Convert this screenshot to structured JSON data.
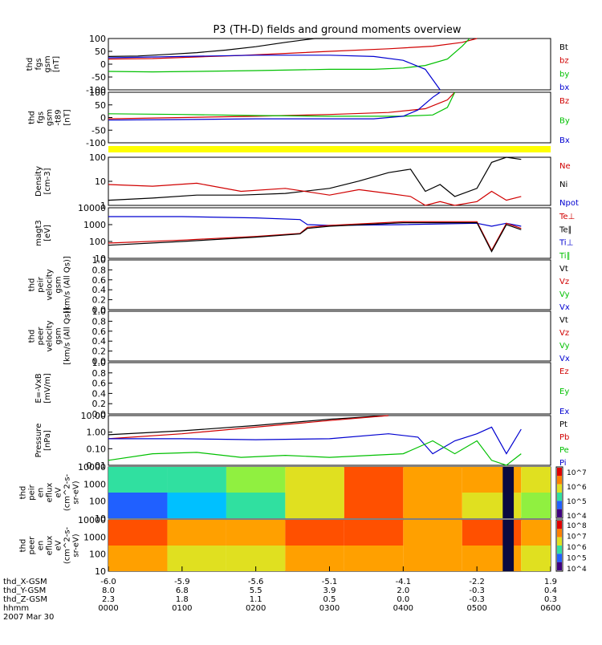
{
  "title": "P3 (TH-D) fields and ground moments overview",
  "colors": {
    "black": "#000000",
    "red": "#d00000",
    "green": "#00c000",
    "blue": "#0000d0",
    "yellow": "#ffff00"
  },
  "chart_data": [
    {
      "type": "line",
      "id": "fgs",
      "ylabel": [
        "thd",
        "fgs",
        "gsm",
        "[nT]"
      ],
      "ylim": [
        -100,
        100
      ],
      "yticks": [
        "100",
        "50",
        "0",
        "-50",
        "-100"
      ],
      "legend": [
        {
          "text": "Bt",
          "color": "black"
        },
        {
          "text": "bz",
          "color": "red"
        },
        {
          "text": "by",
          "color": "green"
        },
        {
          "text": "bx",
          "color": "blue"
        }
      ],
      "series": [
        {
          "name": "Bt",
          "color": "black",
          "x": [
            0,
            40,
            80,
            120,
            160,
            200,
            240,
            280,
            300
          ],
          "y": [
            30,
            32,
            38,
            45,
            55,
            68,
            85,
            100,
            100
          ]
        },
        {
          "name": "bz",
          "color": "red",
          "x": [
            0,
            60,
            120,
            180,
            240,
            300,
            380,
            440,
            480,
            500
          ],
          "y": [
            20,
            22,
            28,
            34,
            42,
            50,
            60,
            70,
            85,
            100
          ]
        },
        {
          "name": "by",
          "color": "green",
          "x": [
            0,
            60,
            120,
            200,
            300,
            360,
            400,
            430,
            460,
            480,
            490
          ],
          "y": [
            -28,
            -30,
            -28,
            -25,
            -20,
            -20,
            -15,
            -5,
            20,
            70,
            100
          ]
        },
        {
          "name": "bx",
          "color": "blue",
          "x": [
            0,
            100,
            200,
            300,
            360,
            400,
            430,
            450
          ],
          "y": [
            25,
            30,
            35,
            35,
            30,
            15,
            -20,
            -100
          ]
        }
      ]
    },
    {
      "type": "line",
      "id": "fgs_t89",
      "ylabel": [
        "thd",
        "fgs",
        "gsm",
        "-t89",
        "[nT]"
      ],
      "ylim": [
        -100,
        100
      ],
      "yticks": [
        "100",
        "50",
        "0",
        "-50",
        "-100"
      ],
      "legend": [
        {
          "text": "Bz",
          "color": "red"
        },
        {
          "text": "By",
          "color": "green"
        },
        {
          "text": "Bx",
          "color": "blue"
        }
      ],
      "series": [
        {
          "name": "Bz",
          "color": "red",
          "x": [
            0,
            100,
            200,
            300,
            380,
            430,
            460,
            470
          ],
          "y": [
            -5,
            0,
            5,
            12,
            20,
            35,
            70,
            100
          ]
        },
        {
          "name": "By",
          "color": "green",
          "x": [
            0,
            100,
            200,
            300,
            400,
            440,
            460,
            470
          ],
          "y": [
            15,
            12,
            8,
            5,
            5,
            10,
            40,
            100
          ]
        },
        {
          "name": "Bx",
          "color": "blue",
          "x": [
            0,
            100,
            200,
            300,
            360,
            400,
            420,
            440,
            450
          ],
          "y": [
            -10,
            -8,
            -5,
            -5,
            -5,
            5,
            30,
            80,
            100
          ]
        }
      ]
    },
    {
      "type": "line",
      "id": "density",
      "log": true,
      "ylabel": [
        "Density",
        "[cm-3]"
      ],
      "ylim": [
        0.3,
        200
      ],
      "yticks": [
        "100",
        "10",
        "1"
      ],
      "legend": [
        {
          "text": "Ne",
          "color": "red"
        },
        {
          "text": "Ni",
          "color": "black"
        },
        {
          "text": "Npot",
          "color": "blue"
        }
      ],
      "series": [
        {
          "name": "Ni",
          "color": "black",
          "x": [
            0,
            60,
            120,
            180,
            240,
            300,
            340,
            380,
            410,
            430,
            450,
            470,
            500,
            520,
            540,
            560
          ],
          "y": [
            0.6,
            0.8,
            1.2,
            1.2,
            1.5,
            3,
            8,
            25,
            40,
            2,
            5,
            1,
            3,
            100,
            200,
            150
          ]
        },
        {
          "name": "Ne",
          "color": "red",
          "x": [
            0,
            60,
            120,
            180,
            240,
            300,
            340,
            380,
            410,
            430,
            450,
            470,
            500,
            520,
            540,
            560
          ],
          "y": [
            5,
            4,
            6,
            2,
            3,
            1.2,
            2.5,
            1.5,
            1,
            0.2,
            0.5,
            0.3,
            0.5,
            2,
            0.6,
            1
          ]
        }
      ]
    },
    {
      "type": "line",
      "id": "temp",
      "log": true,
      "ylabel": [
        "magt3",
        "[eV]"
      ],
      "ylim": [
        10,
        10000
      ],
      "yticks": [
        "10000",
        "1000",
        "100",
        "10"
      ],
      "legend": [
        {
          "text": "Te⊥",
          "color": "red"
        },
        {
          "text": "Te∥",
          "color": "black"
        },
        {
          "text": "Ti⊥",
          "color": "blue"
        },
        {
          "text": "Ti∥",
          "color": "green"
        }
      ],
      "series": [
        {
          "name": "Ti⊥",
          "color": "blue",
          "x": [
            0,
            100,
            200,
            260,
            270,
            300,
            400,
            500,
            520,
            540,
            560
          ],
          "y": [
            3000,
            3000,
            2500,
            2000,
            1000,
            900,
            1000,
            1200,
            800,
            1200,
            800
          ]
        },
        {
          "name": "Te⊥",
          "color": "red",
          "x": [
            0,
            100,
            200,
            260,
            270,
            300,
            400,
            500,
            520,
            540,
            560
          ],
          "y": [
            80,
            120,
            200,
            300,
            700,
            900,
            1500,
            1500,
            30,
            1200,
            600
          ]
        },
        {
          "name": "Te∥",
          "color": "black",
          "x": [
            0,
            100,
            200,
            260,
            270,
            300,
            400,
            500,
            520,
            540,
            560
          ],
          "y": [
            60,
            100,
            180,
            280,
            600,
            800,
            1300,
            1300,
            25,
            1000,
            500
          ]
        }
      ]
    },
    {
      "type": "line",
      "id": "peir_vel",
      "ylabel": [
        "thd",
        "peir",
        "velocity",
        "gsm",
        "[km/s (All Qs)]"
      ],
      "ylim": [
        0,
        1
      ],
      "yticks": [
        "1.0",
        "0.8",
        "0.6",
        "0.4",
        "0.2",
        "0.0"
      ],
      "legend": [
        {
          "text": "Vt",
          "color": "black"
        },
        {
          "text": "Vz",
          "color": "red"
        },
        {
          "text": "Vy",
          "color": "green"
        },
        {
          "text": "Vx",
          "color": "blue"
        }
      ],
      "series": []
    },
    {
      "type": "line",
      "id": "peer_vel",
      "ylabel": [
        "thd",
        "peer",
        "velocity",
        "gsm",
        "[km/s (All Qs)]"
      ],
      "ylim": [
        0,
        1
      ],
      "yticks": [
        "1.0",
        "0.8",
        "0.6",
        "0.4",
        "0.2",
        "0.0"
      ],
      "legend": [
        {
          "text": "Vt",
          "color": "black"
        },
        {
          "text": "Vz",
          "color": "red"
        },
        {
          "text": "Vy",
          "color": "green"
        },
        {
          "text": "Vx",
          "color": "blue"
        }
      ],
      "series": []
    },
    {
      "type": "line",
      "id": "efield",
      "ylabel": [
        "E=-VxB",
        "[mV/m]"
      ],
      "ylim": [
        0,
        1
      ],
      "yticks": [
        "1.0",
        "0.8",
        "0.6",
        "0.4",
        "0.2",
        "0.0"
      ],
      "legend": [
        {
          "text": "Ez",
          "color": "red"
        },
        {
          "text": "Ey",
          "color": "green"
        },
        {
          "text": "Ex",
          "color": "blue"
        }
      ],
      "series": []
    },
    {
      "type": "line",
      "id": "pressure",
      "log": true,
      "ylabel": [
        "Pressure",
        "[nPa]"
      ],
      "ylim": [
        0.01,
        10
      ],
      "yticks": [
        "10.00",
        "1.00",
        "0.10",
        "0.01"
      ],
      "legend": [
        {
          "text": "Pt",
          "color": "black"
        },
        {
          "text": "Pb",
          "color": "red"
        },
        {
          "text": "Pe",
          "color": "green"
        },
        {
          "text": "Pi",
          "color": "blue"
        }
      ],
      "series": [
        {
          "name": "Pt",
          "color": "black",
          "x": [
            0,
            100,
            200,
            300,
            380
          ],
          "y": [
            0.7,
            1.2,
            2.5,
            6,
            10
          ]
        },
        {
          "name": "Pb",
          "color": "red",
          "x": [
            0,
            100,
            200,
            300,
            380
          ],
          "y": [
            0.4,
            0.8,
            2,
            5,
            10
          ]
        },
        {
          "name": "Pi",
          "color": "blue",
          "x": [
            0,
            100,
            200,
            300,
            380,
            420,
            440,
            470,
            500,
            520,
            540,
            560
          ],
          "y": [
            0.4,
            0.4,
            0.35,
            0.4,
            0.8,
            0.5,
            0.05,
            0.3,
            0.8,
            2,
            0.05,
            1.5
          ]
        },
        {
          "name": "Pe",
          "color": "green",
          "x": [
            0,
            60,
            120,
            180,
            240,
            300,
            400,
            440,
            470,
            500,
            520,
            540,
            560
          ],
          "y": [
            0.02,
            0.05,
            0.06,
            0.03,
            0.04,
            0.03,
            0.05,
            0.3,
            0.05,
            0.3,
            0.02,
            0.01,
            0.05
          ]
        }
      ]
    },
    {
      "type": "heatmap",
      "id": "peir_spec",
      "ylabel": [
        "thd",
        "peir",
        "en",
        "eflux",
        "eV",
        "(cm^2-s-",
        "sr-eV)"
      ],
      "yticks": [
        "10000",
        "1000",
        "100",
        "10"
      ],
      "cbar_ticks": [
        "10^7",
        "10^6",
        "10^5",
        "10^4"
      ]
    },
    {
      "type": "heatmap",
      "id": "peer_spec",
      "ylabel": [
        "thd",
        "peer",
        "en",
        "eflux",
        "eV",
        "(cm^2-s-",
        "sr-eV)"
      ],
      "yticks": [
        "10000",
        "1000",
        "100",
        "10"
      ],
      "cbar_ticks": [
        "10^8",
        "10^7",
        "10^6",
        "10^5",
        "10^4"
      ]
    }
  ],
  "xaxis": {
    "rows": [
      {
        "label": "thd_X-GSM",
        "values": [
          "-6.0",
          "-5.9",
          "-5.6",
          "-5.1",
          "-4.1",
          "-2.2",
          "1.9"
        ]
      },
      {
        "label": "thd_Y-GSM",
        "values": [
          "8.0",
          "6.8",
          "5.5",
          "3.9",
          "2.0",
          "-0.3",
          "0.4"
        ]
      },
      {
        "label": "thd_Z-GSM",
        "values": [
          "2.3",
          "1.8",
          "1.1",
          "0.5",
          "0.0",
          "-0.3",
          "0.3"
        ]
      },
      {
        "label": "hhmm",
        "values": [
          "0000",
          "0100",
          "0200",
          "0300",
          "0400",
          "0500",
          "0600"
        ]
      }
    ],
    "date": "2007 Mar 30"
  }
}
